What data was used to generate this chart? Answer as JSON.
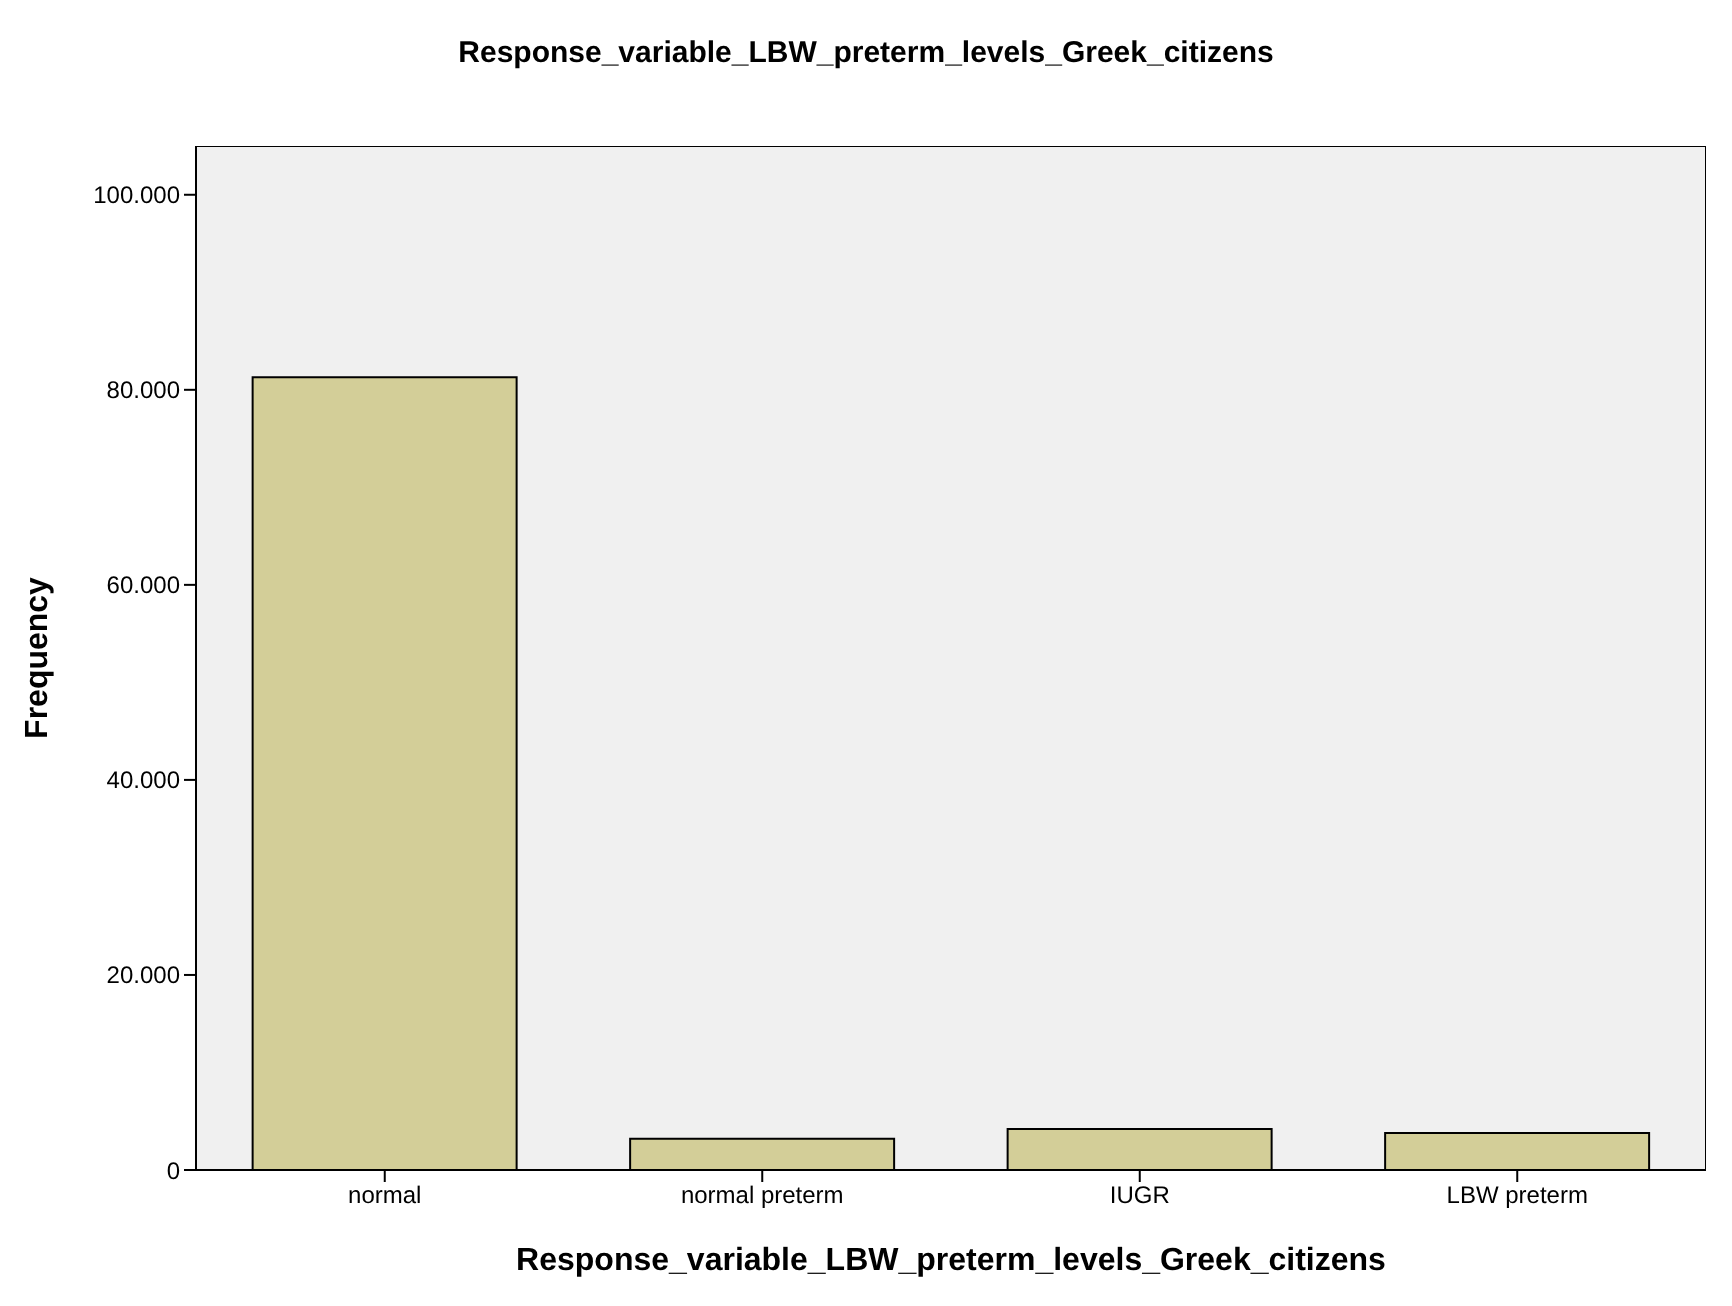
{
  "chart_data": {
    "type": "bar",
    "title": "Response_variable_LBW_preterm_levels_Greek_citizens",
    "xlabel": "Response_variable_LBW_preterm_levels_Greek_citizens",
    "ylabel": "Frequency",
    "categories": [
      "normal",
      "normal preterm",
      "IUGR",
      "LBW preterm"
    ],
    "values": [
      81300,
      3200,
      4200,
      3800
    ],
    "color": "#d3ce98",
    "ylim": [
      0,
      105000
    ],
    "yticks": [
      {
        "value": 0,
        "label": "0"
      },
      {
        "value": 20000,
        "label": "20.000"
      },
      {
        "value": 40000,
        "label": "40.000"
      },
      {
        "value": 60000,
        "label": "60.000"
      },
      {
        "value": 80000,
        "label": "80.000"
      },
      {
        "value": 100000,
        "label": "100.000"
      }
    ],
    "grid": false,
    "legend": false
  }
}
